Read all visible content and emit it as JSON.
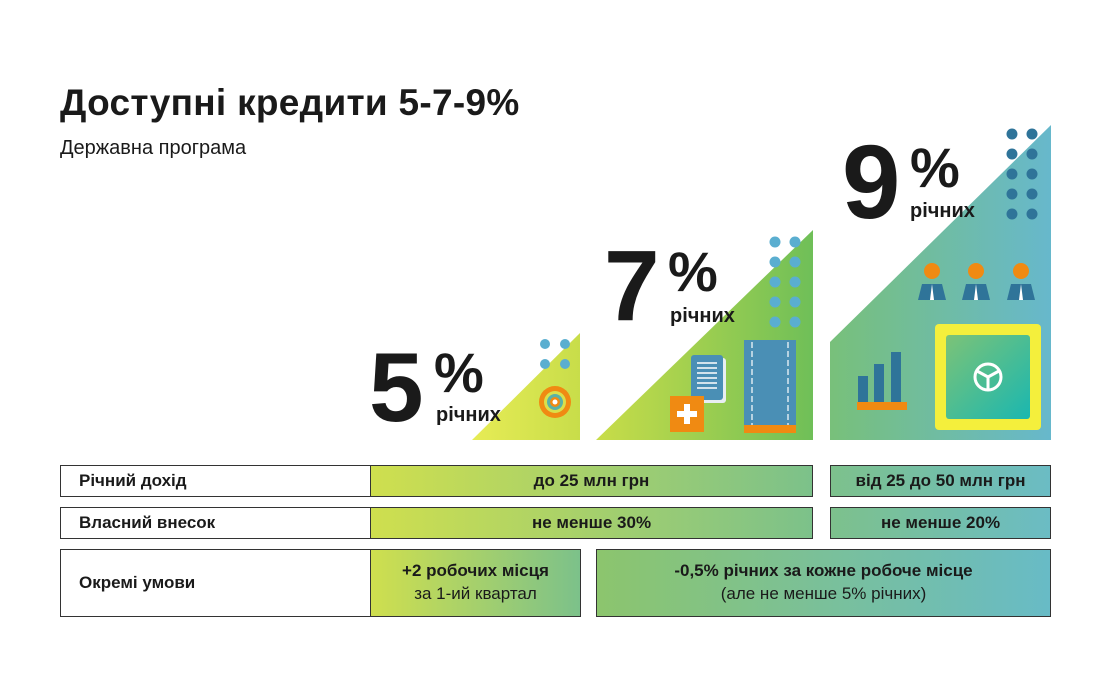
{
  "header": {
    "title": "Доступні кредити 5-7-9%",
    "subtitle": "Державна програма"
  },
  "rates": [
    {
      "value": "5",
      "percent": "%",
      "label": "річних"
    },
    {
      "value": "7",
      "percent": "%",
      "label": "річних"
    },
    {
      "value": "9",
      "percent": "%",
      "label": "річних"
    }
  ],
  "table": {
    "rows": [
      {
        "label": "Річний дохід",
        "cells": [
          "до 25 млн грн",
          "від 25 до 50 млн грн"
        ]
      },
      {
        "label": "Власний внесок",
        "cells": [
          "не менше 30%",
          "не менше 20%"
        ]
      },
      {
        "label": "Окремі умови",
        "cells": [
          {
            "line1": "+2 робочих місця",
            "line2": "за 1-ий квартал"
          },
          {
            "line1": "-0,5% річних за кожне робоче місце",
            "line2": "(але не менше 5% річних)"
          }
        ]
      }
    ]
  },
  "colors": {
    "yellow_green": "#d4e04a",
    "green": "#7dc17f",
    "teal": "#66bac8",
    "orange": "#f08a12",
    "blue": "#3a7ea0",
    "dot": "#5aa9c9"
  }
}
